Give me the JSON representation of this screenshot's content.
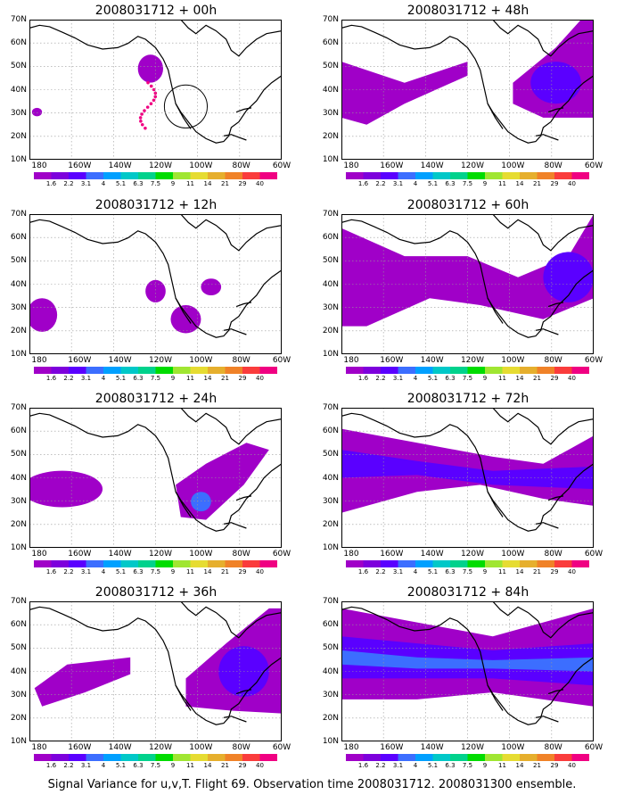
{
  "caption": "Signal Variance for u,v,T. Flight 69. Observation time 2008031712. 2008031300 ensemble.",
  "colorbar": {
    "labels": [
      "1.6",
      "2.2",
      "3.1",
      "4",
      "5.1",
      "6.3",
      "7.5",
      "9",
      "11",
      "14",
      "21",
      "29",
      "40"
    ],
    "colors": [
      "#a000c8",
      "#7d00dc",
      "#5a00ff",
      "#3c6eff",
      "#00a0ff",
      "#00c8c8",
      "#00d28c",
      "#00dc00",
      "#a0e632",
      "#e6dc32",
      "#e6af2d",
      "#f08228",
      "#fa3c3c",
      "#f00082"
    ]
  },
  "axes": {
    "y_labels": [
      "70N",
      "60N",
      "50N",
      "40N",
      "30N",
      "20N",
      "10N"
    ],
    "x_labels": [
      "180",
      "160W",
      "140W",
      "120W",
      "100W",
      "80W",
      "60W"
    ]
  },
  "panels": [
    {
      "title": "2008031712 + 00h",
      "lead": "00h"
    },
    {
      "title": "2008031712 + 48h",
      "lead": "48h"
    },
    {
      "title": "2008031712 + 12h",
      "lead": "12h"
    },
    {
      "title": "2008031712 + 60h",
      "lead": "60h"
    },
    {
      "title": "2008031712 + 24h",
      "lead": "24h"
    },
    {
      "title": "2008031712 + 72h",
      "lead": "72h"
    },
    {
      "title": "2008031712 + 36h",
      "lead": "36h"
    },
    {
      "title": "2008031712 + 84h",
      "lead": "84h"
    }
  ]
}
